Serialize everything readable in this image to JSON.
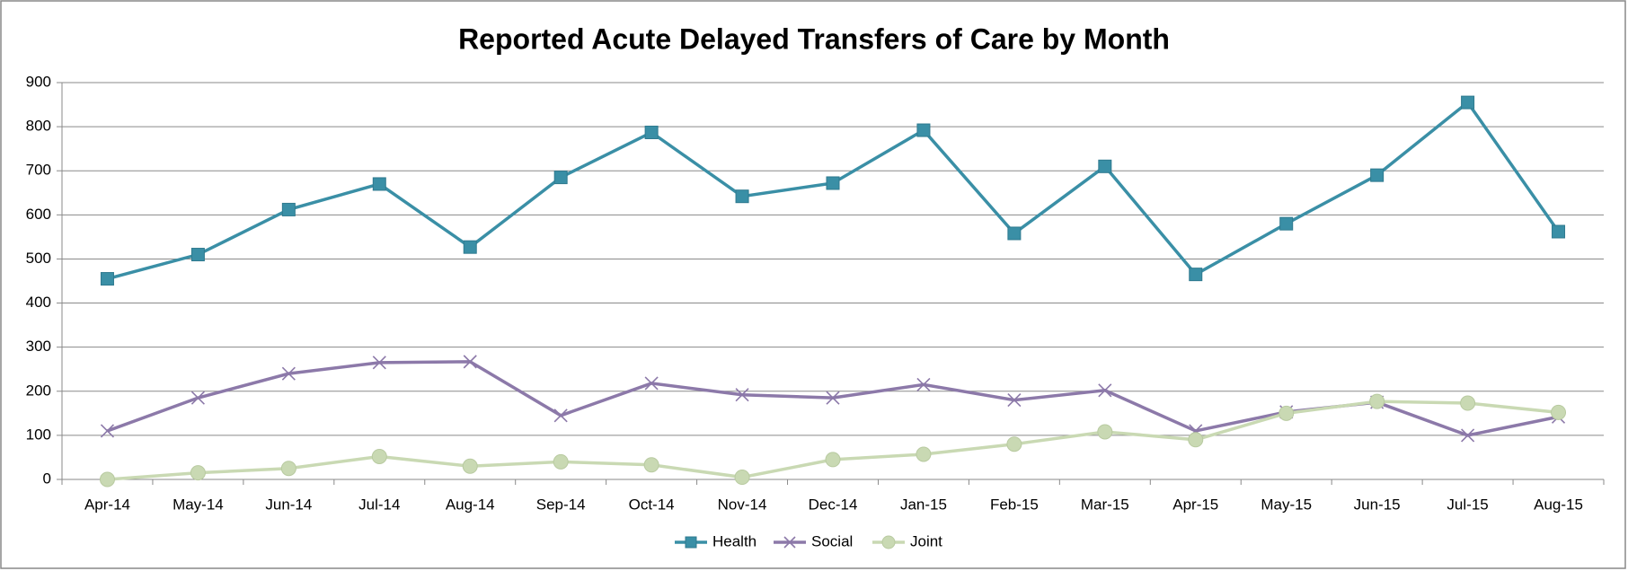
{
  "chart_data": {
    "type": "line",
    "title": "Reported Acute Delayed Transfers of Care by Month",
    "categories": [
      "Apr-14",
      "May-14",
      "Jun-14",
      "Jul-14",
      "Aug-14",
      "Sep-14",
      "Oct-14",
      "Nov-14",
      "Dec-14",
      "Jan-15",
      "Feb-15",
      "Mar-15",
      "Apr-15",
      "May-15",
      "Jun-15",
      "Jul-15",
      "Aug-15"
    ],
    "series": [
      {
        "name": "Health",
        "color": "#3a8fa6",
        "marker": "square",
        "values": [
          455,
          510,
          612,
          670,
          527,
          685,
          787,
          642,
          672,
          792,
          558,
          710,
          465,
          580,
          690,
          855,
          562
        ]
      },
      {
        "name": "Social",
        "color": "#8c79a9",
        "marker": "x",
        "values": [
          110,
          185,
          240,
          265,
          267,
          145,
          218,
          192,
          185,
          215,
          180,
          202,
          110,
          153,
          175,
          100,
          142
        ]
      },
      {
        "name": "Joint",
        "color": "#c9d9b3",
        "marker": "circle",
        "values": [
          0,
          15,
          25,
          52,
          30,
          40,
          33,
          5,
          45,
          57,
          80,
          108,
          90,
          150,
          177,
          173,
          152
        ]
      }
    ],
    "ylim": [
      0,
      900
    ],
    "yticks": [
      0,
      100,
      200,
      300,
      400,
      500,
      600,
      700,
      800,
      900
    ],
    "grid": true,
    "legend": "bottom"
  }
}
